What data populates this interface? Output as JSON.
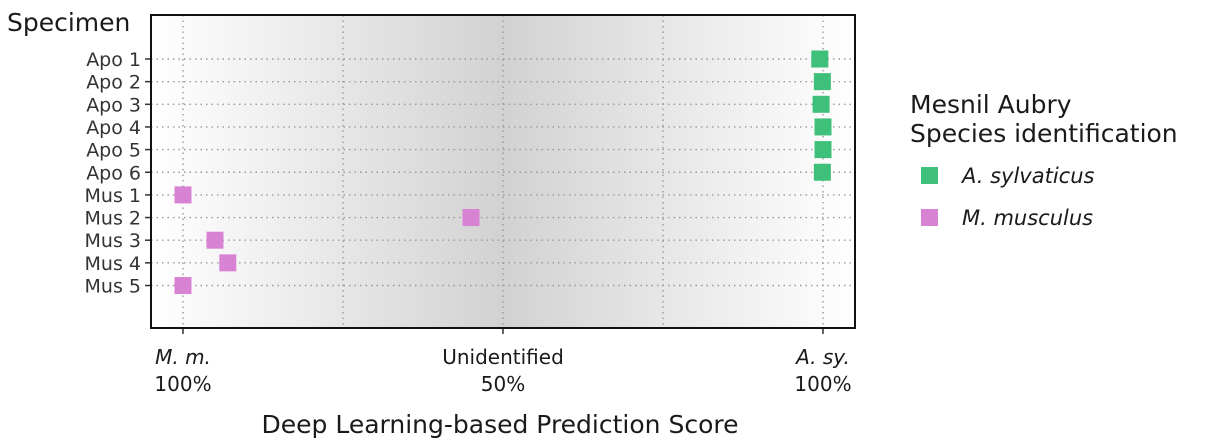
{
  "chart_data": {
    "type": "scatter",
    "ylabel": "Specimen",
    "xlabel": "Deep Learning-based Prediction Score",
    "x_ticks": [
      {
        "value": 0,
        "name": "M. m.",
        "pct": "100%",
        "italic": true
      },
      {
        "value": 50,
        "name": "Unidentified",
        "pct": "50%",
        "italic": false
      },
      {
        "value": 100,
        "name": "A. sy.",
        "pct": "100%",
        "italic": true
      }
    ],
    "xlim": [
      -5,
      105
    ],
    "categories": [
      "Apo 1",
      "Apo 2",
      "Apo 3",
      "Apo 4",
      "Apo 5",
      "Apo 6",
      "Mus 1",
      "Mus 2",
      "Mus 3",
      "Mus 4",
      "Mus 5"
    ],
    "grid": true,
    "legend_placement": "right",
    "legend": {
      "title_line1": "Mesnil Aubry",
      "title_line2": "Species identification"
    },
    "series": [
      {
        "name": "A. sylvaticus",
        "color": "#3ec07a",
        "points": [
          {
            "y": "Apo 1",
            "x": 99.5
          },
          {
            "y": "Apo 2",
            "x": 99.9
          },
          {
            "y": "Apo 3",
            "x": 99.7
          },
          {
            "y": "Apo 4",
            "x": 100.0
          },
          {
            "y": "Apo 5",
            "x": 100.0
          },
          {
            "y": "Apo 6",
            "x": 99.9
          }
        ]
      },
      {
        "name": "M. musculus",
        "color": "#d882d4",
        "points": [
          {
            "y": "Mus 1",
            "x": 0.0
          },
          {
            "y": "Mus 2",
            "x": 45.0
          },
          {
            "y": "Mus 3",
            "x": 5.0
          },
          {
            "y": "Mus 4",
            "x": 7.0
          },
          {
            "y": "Mus 5",
            "x": 0.0
          }
        ]
      }
    ]
  }
}
